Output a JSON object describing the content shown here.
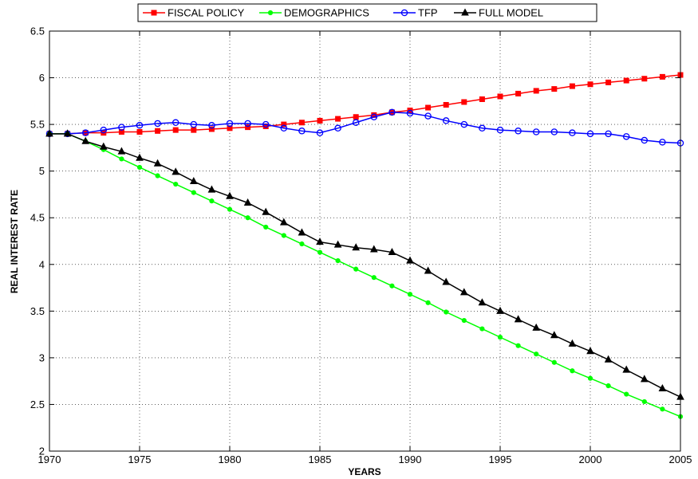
{
  "chart_data": {
    "type": "line",
    "title": "",
    "xlabel": "YEARS",
    "ylabel": "REAL INTEREST RATE",
    "xlim": [
      1970,
      2005
    ],
    "ylim": [
      2,
      6.5
    ],
    "xticks": [
      "1970",
      "1975",
      "1980",
      "1985",
      "1990",
      "1995",
      "2000",
      "2005"
    ],
    "yticks": [
      "2",
      "2.5",
      "3",
      "3.5",
      "4",
      "4.5",
      "5",
      "5.5",
      "6",
      "6.5"
    ],
    "grid": true,
    "legend_position": "top-center",
    "x": [
      1970,
      1971,
      1972,
      1973,
      1974,
      1975,
      1976,
      1977,
      1978,
      1979,
      1980,
      1981,
      1982,
      1983,
      1984,
      1985,
      1986,
      1987,
      1988,
      1989,
      1990,
      1991,
      1992,
      1993,
      1994,
      1995,
      1996,
      1997,
      1998,
      1999,
      2000,
      2001,
      2002,
      2003,
      2004,
      2005
    ],
    "series": [
      {
        "name": "FISCAL POLICY",
        "color": "#ff0000",
        "marker": "square",
        "values": [
          5.4,
          5.4,
          5.41,
          5.41,
          5.42,
          5.42,
          5.43,
          5.44,
          5.44,
          5.45,
          5.46,
          5.47,
          5.48,
          5.5,
          5.52,
          5.54,
          5.56,
          5.58,
          5.6,
          5.63,
          5.65,
          5.68,
          5.71,
          5.74,
          5.77,
          5.8,
          5.83,
          5.86,
          5.88,
          5.91,
          5.93,
          5.95,
          5.97,
          5.99,
          6.01,
          6.03
        ]
      },
      {
        "name": "DEMOGRAPHICS",
        "color": "#00ff00",
        "marker": "circle-filled",
        "values": [
          5.4,
          5.4,
          5.32,
          5.23,
          5.13,
          5.04,
          4.95,
          4.86,
          4.77,
          4.68,
          4.59,
          4.5,
          4.4,
          4.31,
          4.22,
          4.13,
          4.04,
          3.95,
          3.86,
          3.77,
          3.68,
          3.59,
          3.49,
          3.4,
          3.31,
          3.22,
          3.13,
          3.04,
          2.95,
          2.86,
          2.78,
          2.7,
          2.61,
          2.53,
          2.45,
          2.37
        ]
      },
      {
        "name": "TFP",
        "color": "#0000ff",
        "marker": "circle-open",
        "values": [
          5.4,
          5.4,
          5.41,
          5.44,
          5.47,
          5.49,
          5.51,
          5.52,
          5.5,
          5.49,
          5.51,
          5.51,
          5.5,
          5.46,
          5.43,
          5.41,
          5.46,
          5.52,
          5.58,
          5.63,
          5.62,
          5.59,
          5.54,
          5.5,
          5.46,
          5.44,
          5.43,
          5.42,
          5.42,
          5.41,
          5.4,
          5.4,
          5.37,
          5.33,
          5.31,
          5.3
        ]
      },
      {
        "name": "FULL MODEL",
        "color": "#000000",
        "marker": "triangle",
        "values": [
          5.4,
          5.4,
          5.32,
          5.26,
          5.21,
          5.14,
          5.08,
          4.99,
          4.89,
          4.8,
          4.73,
          4.66,
          4.56,
          4.45,
          4.34,
          4.24,
          4.21,
          4.18,
          4.16,
          4.13,
          4.04,
          3.93,
          3.81,
          3.7,
          3.59,
          3.5,
          3.41,
          3.32,
          3.24,
          3.15,
          3.07,
          2.98,
          2.87,
          2.77,
          2.67,
          2.58
        ]
      }
    ]
  }
}
